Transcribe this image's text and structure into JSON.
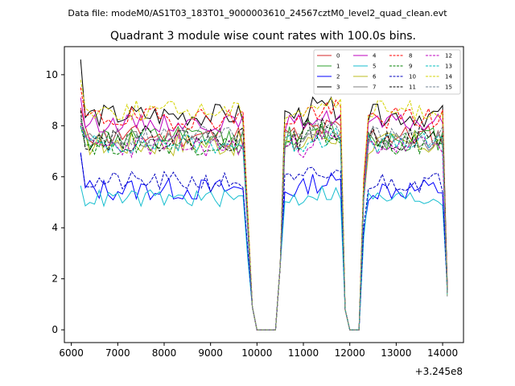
{
  "chart_data": {
    "type": "line",
    "suptitle": "Data file: modeM0/AS1T03_183T01_9000003610_24567cztM0_level2_quad_clean.evt",
    "title": "Quadrant 3 module wise count rates with 100.0s bins.",
    "xlabel": "",
    "ylabel": "",
    "x_offset_label": "+3.245e8",
    "xlim": [
      5850,
      14450
    ],
    "ylim": [
      -0.5,
      11.1
    ],
    "xticks": [
      6000,
      7000,
      8000,
      9000,
      10000,
      11000,
      12000,
      13000,
      14000
    ],
    "yticks": [
      0,
      2,
      4,
      6,
      8,
      10
    ],
    "legend_position": "upper-right",
    "legend_columns": 4,
    "segments": [
      {
        "x_start": 6200,
        "x_end": 9800,
        "type": "on"
      },
      {
        "x_start": 9800,
        "x_end": 9900,
        "type": "drop"
      },
      {
        "x_start": 10000,
        "x_end": 10500,
        "type": "gap"
      },
      {
        "x_start": 10500,
        "x_end": 11900,
        "type": "on"
      },
      {
        "x_start": 12000,
        "x_end": 12200,
        "type": "gap"
      },
      {
        "x_start": 12300,
        "x_end": 14100,
        "type": "on"
      }
    ],
    "series": [
      {
        "name": "0",
        "color": "#d62728",
        "dash": "solid",
        "base": 7.6,
        "amp": 0.45,
        "first": 8.7,
        "seed": 11
      },
      {
        "name": "1",
        "color": "#2ca02c",
        "dash": "solid",
        "base": 7.5,
        "amp": 0.5,
        "first": 8.2,
        "seed": 12
      },
      {
        "name": "2",
        "color": "#0000ff",
        "dash": "solid",
        "base": 5.5,
        "amp": 0.45,
        "first": 6.95,
        "seed": 13
      },
      {
        "name": "3",
        "color": "#000000",
        "dash": "solid",
        "base": 8.4,
        "amp": 0.45,
        "first": 10.6,
        "seed": 14
      },
      {
        "name": "4",
        "color": "#bf00bf",
        "dash": "solid",
        "base": 8.1,
        "amp": 0.35,
        "first": 9.1,
        "seed": 15
      },
      {
        "name": "5",
        "color": "#17becf",
        "dash": "solid",
        "base": 5.15,
        "amp": 0.35,
        "first": 5.65,
        "seed": 16
      },
      {
        "name": "6",
        "color": "#bcbd22",
        "dash": "solid",
        "base": 7.3,
        "amp": 0.5,
        "first": 7.9,
        "seed": 17
      },
      {
        "name": "7",
        "color": "#7f7f7f",
        "dash": "solid",
        "base": 7.4,
        "amp": 0.4,
        "first": 8.3,
        "seed": 18
      },
      {
        "name": "8",
        "color": "#ff0000",
        "dash": "dashed",
        "base": 8.3,
        "amp": 0.45,
        "first": 9.5,
        "seed": 19
      },
      {
        "name": "9",
        "color": "#008000",
        "dash": "dashed",
        "base": 7.3,
        "amp": 0.45,
        "first": 8.0,
        "seed": 20
      },
      {
        "name": "10",
        "color": "#0000bf",
        "dash": "dashed",
        "base": 5.8,
        "amp": 0.4,
        "first": 6.9,
        "seed": 21
      },
      {
        "name": "11",
        "color": "#000000",
        "dash": "dashed",
        "base": 7.5,
        "amp": 0.5,
        "first": 8.6,
        "seed": 22
      },
      {
        "name": "12",
        "color": "#bf00bf",
        "dash": "dashed",
        "base": 7.2,
        "amp": 0.45,
        "first": 8.1,
        "seed": 23
      },
      {
        "name": "13",
        "color": "#00bfbf",
        "dash": "dashed",
        "base": 7.3,
        "amp": 0.4,
        "first": 7.95,
        "seed": 24
      },
      {
        "name": "14",
        "color": "#d4d400",
        "dash": "dashed",
        "base": 8.6,
        "amp": 0.4,
        "first": 9.8,
        "seed": 25
      },
      {
        "name": "15",
        "color": "#708090",
        "dash": "dashed",
        "base": 7.6,
        "amp": 0.4,
        "first": 8.4,
        "seed": 26
      }
    ]
  }
}
